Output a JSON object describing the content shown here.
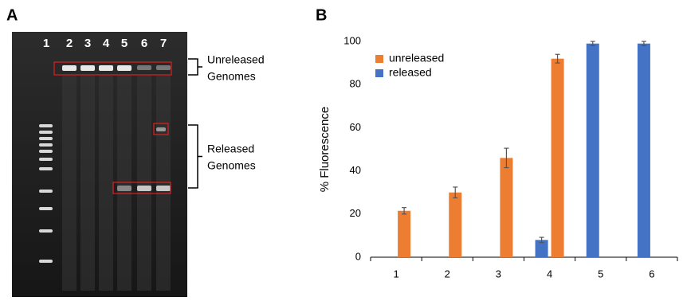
{
  "panels": [
    "A",
    "B"
  ],
  "gel": {
    "lanes": [
      "1",
      "2",
      "3",
      "4",
      "5",
      "6",
      "7"
    ],
    "annotations": [
      [
        "Unreleased",
        "Genomes"
      ],
      [
        "Released",
        "Genomes"
      ]
    ]
  },
  "chart_data": {
    "type": "bar",
    "y_label": "% Fluorescence",
    "categories": [
      "1",
      "2",
      "3",
      "4",
      "5",
      "6"
    ],
    "series": [
      {
        "name": "unreleased",
        "color": "#ed7d31",
        "values": [
          21.5,
          30,
          46,
          92,
          null,
          null
        ],
        "errors": [
          1.5,
          2.5,
          4.5,
          2,
          null,
          null
        ]
      },
      {
        "name": "released",
        "color": "#4472c4",
        "values": [
          null,
          null,
          null,
          8,
          99,
          99
        ],
        "errors": [
          null,
          null,
          null,
          1.2,
          1,
          1
        ]
      }
    ],
    "ylim": [
      0,
      100
    ],
    "yticks": [
      0,
      20,
      40,
      60,
      80,
      100
    ],
    "legend": "upper left"
  }
}
